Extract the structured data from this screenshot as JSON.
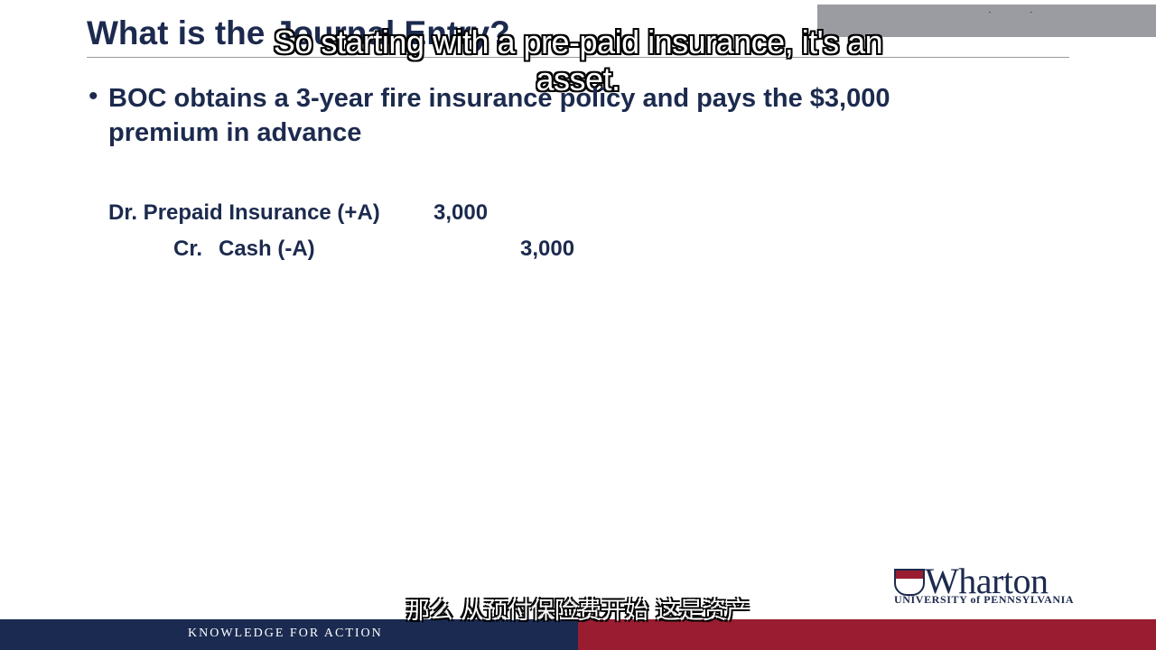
{
  "slide": {
    "title": "What is the Journal Entry?",
    "bullet_marker": "•",
    "bullet_text": "BOC obtains a 3-year fire insurance policy and pays the $3,000 premium in advance",
    "journal": {
      "debit_account": "Dr. Prepaid Insurance (+A)",
      "debit_amount": "3,000",
      "credit_prefix": "Cr.",
      "credit_account": "Cash (-A)",
      "credit_amount": "3,000"
    }
  },
  "subtitles": {
    "english": "So starting with a pre-paid insurance, it's an asset.",
    "chinese": "那么 从预付保险费开始 这是资产"
  },
  "footer": {
    "tagline": "KNOWLEDGE FOR ACTION",
    "navy_color": "#1a2a50",
    "red_color": "#9a1c31"
  },
  "logo": {
    "wordmark": "Wharton",
    "university": "UNIVERSITY of PENNSYLVANIA",
    "icon": "penn-shield-icon"
  }
}
